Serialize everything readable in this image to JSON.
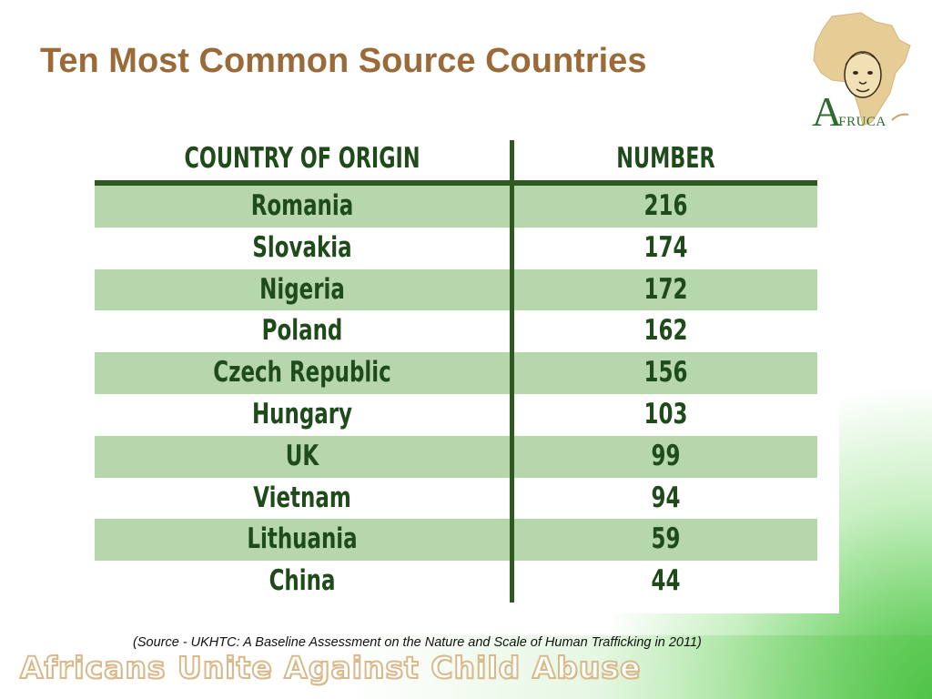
{
  "slide": {
    "title": "Ten Most Common Source Countries",
    "source": "(Source - UKHTC: A Baseline Assessment on the Nature and Scale of Human Trafficking in 2011)",
    "footer": "Africans Unite Against Child Abuse"
  },
  "logo": {
    "text_a": "A",
    "text_rest": "FRUCA",
    "icon": "africa-map-child-face-icon"
  },
  "table": {
    "headers": {
      "country": "COUNTRY OF ORIGIN",
      "number": "NUMBER"
    },
    "rows": [
      {
        "country": "Romania",
        "number": "216"
      },
      {
        "country": "Slovakia",
        "number": "174"
      },
      {
        "country": "Nigeria",
        "number": "172"
      },
      {
        "country": "Poland",
        "number": "162"
      },
      {
        "country": "Czech Republic",
        "number": "156"
      },
      {
        "country": "Hungary",
        "number": "103"
      },
      {
        "country": "UK",
        "number": "99"
      },
      {
        "country": "Vietnam",
        "number": "94"
      },
      {
        "country": "Lithuania",
        "number": "59"
      },
      {
        "country": "China",
        "number": "44"
      }
    ]
  },
  "colors": {
    "title": "#9a6a38",
    "table_text": "#1f4a1a",
    "row_shade": "#b6d6ab",
    "rule": "#2e5a22"
  }
}
